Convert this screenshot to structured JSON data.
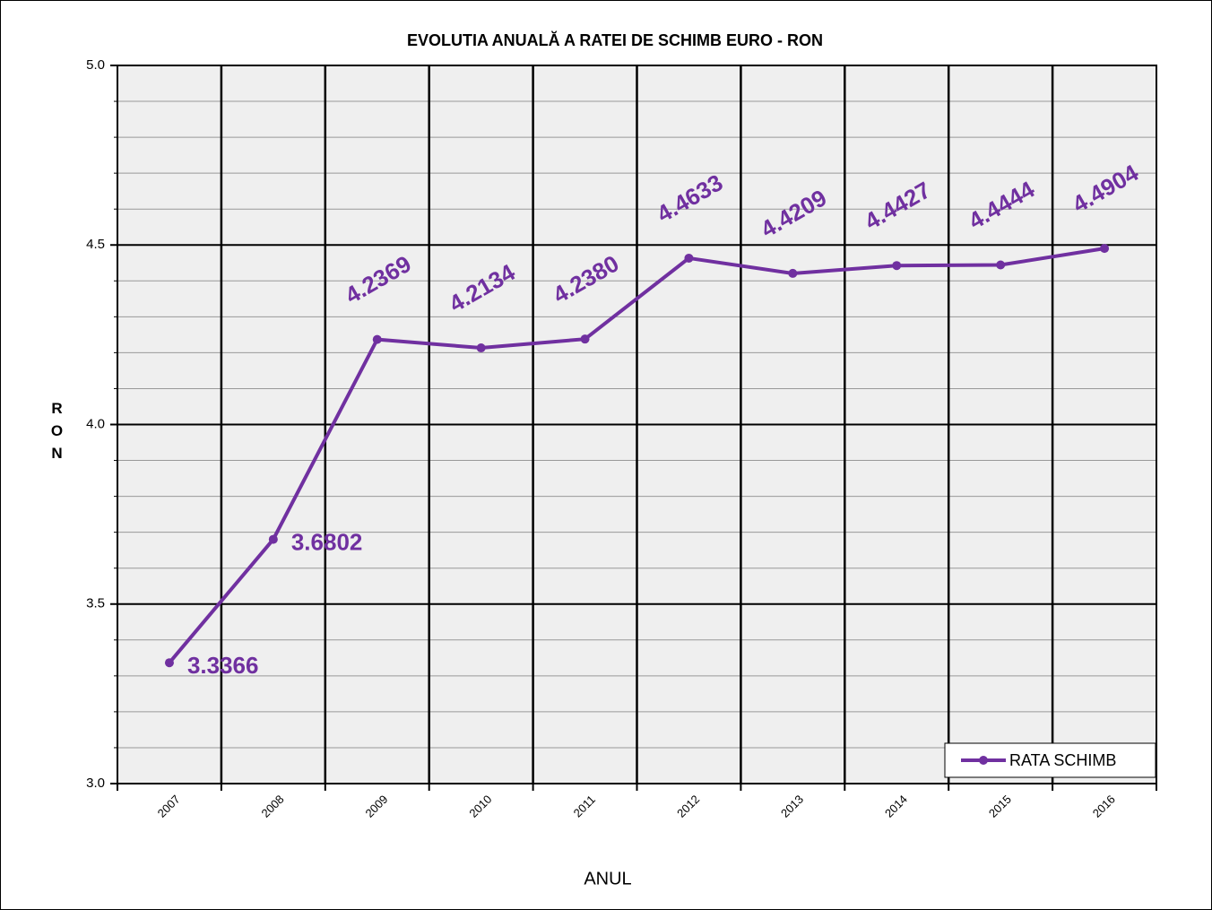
{
  "chart_data": {
    "type": "line",
    "title": "EVOLUTIA ANUALĂ  A  RATEI DE SCHIMB EURO - RON",
    "x_label": "ANUL",
    "y_label": "RON",
    "categories": [
      "2007",
      "2008",
      "2009",
      "2010",
      "2011",
      "2012",
      "2013",
      "2014",
      "2015",
      "2016"
    ],
    "series": [
      {
        "name": "RATA SCHIMB",
        "color": "#7030a0",
        "values": [
          3.3366,
          3.6802,
          4.2369,
          4.2134,
          4.238,
          4.4633,
          4.4209,
          4.4427,
          4.4444,
          4.4904
        ],
        "value_labels": [
          "3.3366",
          "3.6802",
          "4.2369",
          "4.2134",
          "4.2380",
          "4.4633",
          "4.4209",
          "4.4427",
          "4.4444",
          "4.4904"
        ]
      }
    ],
    "ylim": [
      3,
      5
    ],
    "yticks": [
      {
        "value": 3,
        "label": "3.0"
      },
      3.5,
      {
        "value": 4,
        "label": "4.0"
      },
      4.5,
      {
        "value": 5,
        "label": "5.0"
      }
    ],
    "grid": true,
    "minor_grid": true,
    "legend": "lower right"
  }
}
